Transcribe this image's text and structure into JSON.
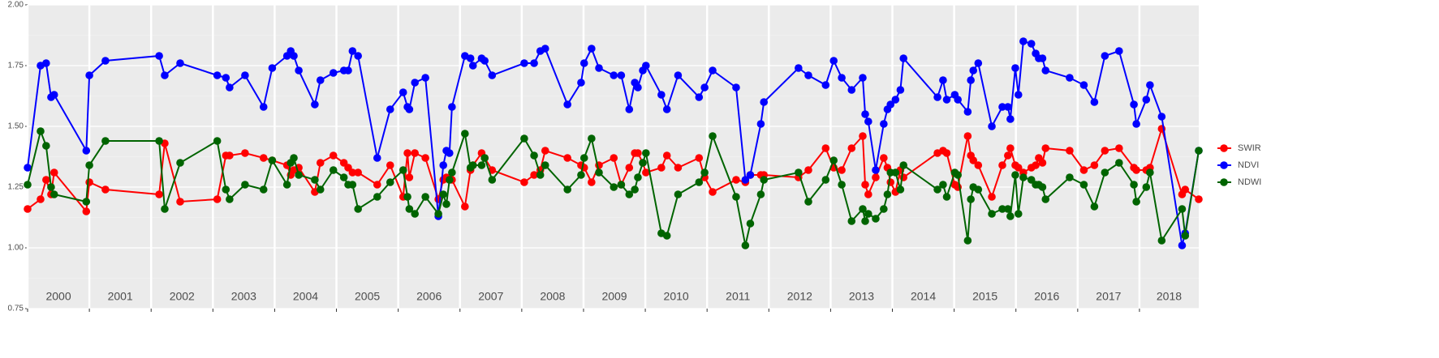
{
  "chart_data": {
    "type": "line",
    "x": [
      2000,
      2000.21,
      2000.3,
      2000.38,
      2000.43,
      2000.95,
      2001,
      2001.26,
      2002.13,
      2002.22,
      2002.47,
      2003.07,
      2003.21,
      2003.27,
      2003.52,
      2003.82,
      2003.96,
      2004.2,
      2004.26,
      2004.31,
      2004.39,
      2004.65,
      2004.74,
      2004.95,
      2005.12,
      2005.19,
      2005.26,
      2005.35,
      2005.66,
      2005.87,
      2006.08,
      2006.15,
      2006.18,
      2006.27,
      2006.44,
      2006.65,
      2006.73,
      2006.78,
      2006.83,
      2006.87,
      2007.08,
      2007.17,
      2007.21,
      2007.35,
      2007.4,
      2007.52,
      2008.04,
      2008.2,
      2008.3,
      2008.38,
      2008.74,
      2008.96,
      2009.01,
      2009.13,
      2009.25,
      2009.49,
      2009.61,
      2009.74,
      2009.83,
      2009.88,
      2009.96,
      2010.01,
      2010.26,
      2010.35,
      2010.53,
      2010.87,
      2010.96,
      2011.09,
      2011.47,
      2011.62,
      2011.7,
      2011.87,
      2011.92,
      2012.48,
      2012.64,
      2012.92,
      2013.05,
      2013.18,
      2013.34,
      2013.52,
      2013.56,
      2013.61,
      2013.73,
      2013.86,
      2013.92,
      2013.97,
      2014.05,
      2014.13,
      2014.18,
      2014.73,
      2014.82,
      2014.88,
      2015.01,
      2015.06,
      2015.22,
      2015.27,
      2015.31,
      2015.39,
      2015.61,
      2015.78,
      2015.87,
      2015.91,
      2015.99,
      2016.04,
      2016.12,
      2016.25,
      2016.32,
      2016.37,
      2016.43,
      2016.48,
      2016.87,
      2017.1,
      2017.27,
      2017.44,
      2017.67,
      2017.91,
      2017.95,
      2018.11,
      2018.17,
      2018.36,
      2018.69,
      2018.74,
      2018.96
    ],
    "series": [
      {
        "name": "SWIR",
        "color": "#ff0000",
        "values": [
          1.16,
          1.2,
          1.28,
          1.22,
          1.31,
          1.15,
          1.27,
          1.24,
          1.22,
          1.43,
          1.19,
          1.2,
          1.38,
          1.38,
          1.39,
          1.37,
          1.36,
          1.34,
          1.3,
          1.32,
          1.33,
          1.23,
          1.35,
          1.38,
          1.35,
          1.33,
          1.31,
          1.31,
          1.26,
          1.34,
          1.21,
          1.39,
          1.29,
          1.39,
          1.37,
          1.2,
          1.28,
          1.29,
          1.28,
          1.28,
          1.17,
          1.32,
          1.34,
          1.39,
          1.37,
          1.32,
          1.27,
          1.3,
          1.32,
          1.4,
          1.37,
          1.34,
          1.33,
          1.27,
          1.34,
          1.37,
          1.26,
          1.33,
          1.39,
          1.39,
          1.35,
          1.31,
          1.33,
          1.38,
          1.33,
          1.37,
          1.29,
          1.23,
          1.28,
          1.27,
          1.3,
          1.3,
          1.3,
          1.29,
          1.32,
          1.41,
          1.33,
          1.32,
          1.41,
          1.46,
          1.26,
          1.22,
          1.29,
          1.37,
          1.33,
          1.27,
          1.23,
          1.32,
          1.29,
          1.39,
          1.4,
          1.39,
          1.26,
          1.25,
          1.46,
          1.38,
          1.36,
          1.34,
          1.21,
          1.34,
          1.38,
          1.41,
          1.34,
          1.33,
          1.31,
          1.33,
          1.34,
          1.37,
          1.35,
          1.41,
          1.4,
          1.32,
          1.34,
          1.4,
          1.41,
          1.33,
          1.32,
          1.32,
          1.33,
          1.49,
          1.22,
          1.24,
          1.2
        ]
      },
      {
        "name": "NDVI",
        "color": "#0000ff",
        "values": [
          1.33,
          1.75,
          1.76,
          1.62,
          1.63,
          1.4,
          1.71,
          1.77,
          1.79,
          1.71,
          1.76,
          1.71,
          1.7,
          1.66,
          1.71,
          1.58,
          1.74,
          1.79,
          1.81,
          1.79,
          1.73,
          1.59,
          1.69,
          1.72,
          1.73,
          1.73,
          1.81,
          1.79,
          1.37,
          1.57,
          1.64,
          1.58,
          1.57,
          1.68,
          1.7,
          1.13,
          1.34,
          1.4,
          1.39,
          1.58,
          1.79,
          1.78,
          1.75,
          1.78,
          1.77,
          1.71,
          1.76,
          1.76,
          1.81,
          1.82,
          1.59,
          1.68,
          1.76,
          1.82,
          1.74,
          1.71,
          1.71,
          1.57,
          1.68,
          1.66,
          1.73,
          1.75,
          1.63,
          1.57,
          1.71,
          1.62,
          1.66,
          1.73,
          1.66,
          1.28,
          1.3,
          1.51,
          1.6,
          1.74,
          1.71,
          1.67,
          1.77,
          1.7,
          1.65,
          1.7,
          1.55,
          1.52,
          1.32,
          1.51,
          1.57,
          1.59,
          1.61,
          1.65,
          1.78,
          1.62,
          1.69,
          1.61,
          1.63,
          1.61,
          1.56,
          1.69,
          1.73,
          1.76,
          1.5,
          1.58,
          1.58,
          1.53,
          1.74,
          1.63,
          1.85,
          1.84,
          1.8,
          1.78,
          1.78,
          1.73,
          1.7,
          1.67,
          1.6,
          1.79,
          1.81,
          1.59,
          1.51,
          1.61,
          1.67,
          1.54,
          1.01,
          1.06,
          1.4
        ]
      },
      {
        "name": "NDWI",
        "color": "#006400",
        "values": [
          1.26,
          1.48,
          1.42,
          1.25,
          1.22,
          1.19,
          1.34,
          1.44,
          1.44,
          1.16,
          1.35,
          1.44,
          1.24,
          1.2,
          1.26,
          1.24,
          1.36,
          1.26,
          1.35,
          1.37,
          1.3,
          1.28,
          1.24,
          1.32,
          1.29,
          1.26,
          1.26,
          1.16,
          1.21,
          1.27,
          1.32,
          1.21,
          1.16,
          1.14,
          1.21,
          1.14,
          1.22,
          1.18,
          1.28,
          1.31,
          1.47,
          1.33,
          1.34,
          1.34,
          1.37,
          1.28,
          1.45,
          1.38,
          1.3,
          1.34,
          1.24,
          1.3,
          1.37,
          1.45,
          1.31,
          1.25,
          1.26,
          1.22,
          1.24,
          1.29,
          1.35,
          1.39,
          1.06,
          1.05,
          1.22,
          1.27,
          1.31,
          1.46,
          1.21,
          1.01,
          1.1,
          1.22,
          1.28,
          1.31,
          1.19,
          1.28,
          1.36,
          1.26,
          1.11,
          1.16,
          1.11,
          1.14,
          1.12,
          1.16,
          1.22,
          1.31,
          1.31,
          1.24,
          1.34,
          1.24,
          1.26,
          1.21,
          1.31,
          1.3,
          1.03,
          1.2,
          1.25,
          1.24,
          1.14,
          1.16,
          1.16,
          1.13,
          1.3,
          1.14,
          1.29,
          1.28,
          1.26,
          1.26,
          1.25,
          1.2,
          1.29,
          1.26,
          1.17,
          1.31,
          1.35,
          1.26,
          1.19,
          1.25,
          1.31,
          1.03,
          1.16,
          1.05,
          1.4
        ]
      }
    ],
    "xlim": [
      2000,
      2018.96
    ],
    "xticks": [
      2000,
      2001,
      2002,
      2003,
      2004,
      2005,
      2006,
      2007,
      2008,
      2009,
      2010,
      2011,
      2012,
      2013,
      2014,
      2015,
      2016,
      2017,
      2018
    ],
    "year_labels": [
      "2000",
      "2001",
      "2002",
      "2003",
      "2004",
      "2005",
      "2006",
      "2007",
      "2008",
      "2009",
      "2010",
      "2011",
      "2012",
      "2013",
      "2014",
      "2015",
      "2016",
      "2017",
      "2018"
    ],
    "ylim": [
      0.75,
      2.0
    ],
    "yticks": [
      0.75,
      {
        "value": 1.0,
        "label": "1.00"
      },
      1.25,
      {
        "value": 1.5,
        "label": "1.50"
      },
      1.75,
      {
        "value": 2.0,
        "label": "2.00"
      }
    ],
    "grid": true,
    "legend": "right"
  }
}
